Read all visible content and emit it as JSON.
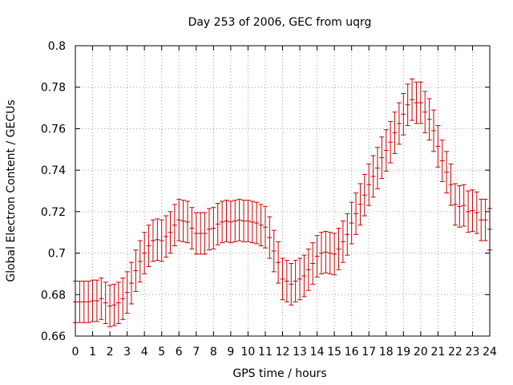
{
  "chart_data": {
    "type": "scatter",
    "title": "Day 253 of 2006, GEC from uqrg",
    "xlabel": "GPS time / hours",
    "ylabel": "Global Electron Content / GECUs",
    "xlim": [
      0,
      24
    ],
    "ylim": [
      0.66,
      0.8
    ],
    "x_ticks": [
      "0",
      "1",
      "2",
      "3",
      "4",
      "5",
      "6",
      "7",
      "8",
      "9",
      "10",
      "11",
      "12",
      "13",
      "14",
      "15",
      "16",
      "17",
      "18",
      "19",
      "20",
      "21",
      "22",
      "23",
      "24"
    ],
    "y_ticks": [
      "0.66",
      "0.68",
      "0.7",
      "0.72",
      "0.74",
      "0.76",
      "0.78",
      "0.8"
    ],
    "grid": true,
    "error_bar": 0.01,
    "color": "#cc0000",
    "series": [
      {
        "x": [
          0,
          0.25,
          0.5,
          0.75,
          1,
          1.25,
          1.5,
          1.75,
          2,
          2.25,
          2.5,
          2.75,
          3,
          3.25,
          3.5,
          3.75,
          4,
          4.25,
          4.5,
          4.75,
          5,
          5.25,
          5.5,
          5.75,
          6,
          6.25,
          6.5,
          6.75,
          7,
          7.25,
          7.5,
          7.75,
          8,
          8.25,
          8.5,
          8.75,
          9,
          9.25,
          9.5,
          9.75,
          10,
          10.25,
          10.5,
          10.75,
          11,
          11.25,
          11.5,
          11.75,
          12,
          12.25,
          12.5,
          12.75,
          13,
          13.25,
          13.5,
          13.75,
          14,
          14.25,
          14.5,
          14.75,
          15,
          15.25,
          15.5,
          15.75,
          16,
          16.25,
          16.5,
          16.75,
          17,
          17.25,
          17.5,
          17.75,
          18,
          18.25,
          18.5,
          18.75,
          19,
          19.25,
          19.5,
          19.75,
          20,
          20.25,
          20.5,
          20.75,
          21,
          21.25,
          21.5,
          21.75,
          22,
          22.25,
          22.5,
          22.75,
          23,
          23.25,
          23.5,
          23.75,
          24
        ],
        "y": [
          0.6765,
          0.6765,
          0.6765,
          0.6765,
          0.677,
          0.677,
          0.678,
          0.676,
          0.6745,
          0.675,
          0.676,
          0.678,
          0.681,
          0.6855,
          0.6915,
          0.696,
          0.7,
          0.7035,
          0.706,
          0.7065,
          0.706,
          0.708,
          0.71,
          0.7135,
          0.716,
          0.7155,
          0.715,
          0.712,
          0.7095,
          0.7095,
          0.7095,
          0.7115,
          0.712,
          0.714,
          0.715,
          0.7155,
          0.715,
          0.7155,
          0.716,
          0.7155,
          0.7155,
          0.715,
          0.7145,
          0.7135,
          0.7125,
          0.7075,
          0.701,
          0.6955,
          0.6875,
          0.6865,
          0.685,
          0.6865,
          0.6875,
          0.689,
          0.692,
          0.695,
          0.6985,
          0.7,
          0.7005,
          0.7,
          0.6995,
          0.702,
          0.7055,
          0.709,
          0.7145,
          0.719,
          0.7235,
          0.728,
          0.733,
          0.737,
          0.741,
          0.746,
          0.7495,
          0.7535,
          0.758,
          0.7625,
          0.767,
          0.7715,
          0.774,
          0.7725,
          0.7725,
          0.768,
          0.7645,
          0.759,
          0.7515,
          0.7445,
          0.739,
          0.733,
          0.7235,
          0.7225,
          0.723,
          0.72,
          0.7205,
          0.7195,
          0.716,
          0.716,
          0.7115
        ]
      }
    ]
  }
}
